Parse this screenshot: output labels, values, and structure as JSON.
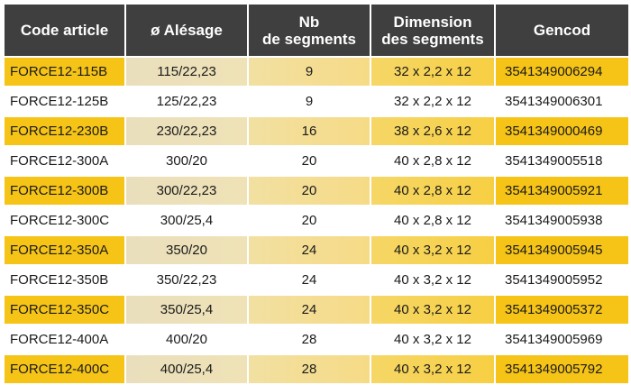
{
  "headers": [
    {
      "line1": "Code article",
      "line2": ""
    },
    {
      "line1": "ø Alésage",
      "line2": ""
    },
    {
      "line1": "Nb",
      "line2": "de segments"
    },
    {
      "line1": "Dimension",
      "line2": "des segments"
    },
    {
      "line1": "Gencod",
      "line2": ""
    }
  ],
  "rows": [
    {
      "code": "FORCE12-115B",
      "alesage": "115/22,23",
      "nb": "9",
      "dimension": "32 x 2,2 x 12",
      "gencod": "3541349006294",
      "style": "yellow"
    },
    {
      "code": "FORCE12-125B",
      "alesage": "125/22,23",
      "nb": "9",
      "dimension": "32 x 2,2 x 12",
      "gencod": "3541349006301",
      "style": "white"
    },
    {
      "code": "FORCE12-230B",
      "alesage": "230/22,23",
      "nb": "16",
      "dimension": "38 x 2,6 x 12",
      "gencod": "3541349000469",
      "style": "yellow"
    },
    {
      "code": "FORCE12-300A",
      "alesage": "300/20",
      "nb": "20",
      "dimension": "40 x 2,8 x 12",
      "gencod": "3541349005518",
      "style": "white"
    },
    {
      "code": "FORCE12-300B",
      "alesage": "300/22,23",
      "nb": "20",
      "dimension": "40 x 2,8 x 12",
      "gencod": "3541349005921",
      "style": "yellow"
    },
    {
      "code": "FORCE12-300C",
      "alesage": "300/25,4",
      "nb": "20",
      "dimension": "40 x 2,8 x 12",
      "gencod": "3541349005938",
      "style": "white"
    },
    {
      "code": "FORCE12-350A",
      "alesage": "350/20",
      "nb": "24",
      "dimension": "40 x 3,2 x 12",
      "gencod": "3541349005945",
      "style": "yellow"
    },
    {
      "code": "FORCE12-350B",
      "alesage": "350/22,23",
      "nb": "24",
      "dimension": "40 x 3,2 x 12",
      "gencod": "3541349005952",
      "style": "white"
    },
    {
      "code": "FORCE12-350C",
      "alesage": "350/25,4",
      "nb": "24",
      "dimension": "40 x 3,2 x 12",
      "gencod": "3541349005372",
      "style": "yellow"
    },
    {
      "code": "FORCE12-400A",
      "alesage": "400/20",
      "nb": "28",
      "dimension": "40 x 3,2 x 12",
      "gencod": "3541349005969",
      "style": "white"
    },
    {
      "code": "FORCE12-400C",
      "alesage": "400/25,4",
      "nb": "28",
      "dimension": "40 x 3,2 x 12",
      "gencod": "3541349005792",
      "style": "yellow"
    }
  ],
  "colors": {
    "header_bg": "#3f3f3f",
    "header_text": "#ffffff",
    "accent_yellow": "#f6c417",
    "row_white": "#ffffff"
  }
}
